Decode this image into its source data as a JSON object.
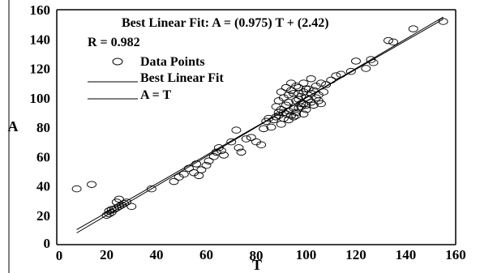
{
  "chart_data": {
    "type": "scatter",
    "title": "Best Linear Fit:  A = (0.975) T + (2.42)",
    "annotation": "R = 0.982",
    "xlabel": "T",
    "ylabel": "A",
    "xlim": [
      0,
      160
    ],
    "ylim": [
      0,
      160
    ],
    "xticks": [
      "0",
      "20",
      "40",
      "60",
      "80",
      "100",
      "120",
      "140",
      "160"
    ],
    "yticks": [
      "0",
      "20",
      "40",
      "60",
      "80",
      "100",
      "120",
      "140",
      "160"
    ],
    "grid": false,
    "legend_position": "top-left",
    "legend": [
      {
        "label": "Data Points",
        "marker": "circle"
      },
      {
        "label": "Best Linear Fit",
        "marker": "line"
      },
      {
        "label": "A = T",
        "marker": "line"
      }
    ],
    "fit_line": {
      "slope": 0.975,
      "intercept": 2.42
    },
    "identity_line": {
      "slope": 1,
      "intercept": 0
    },
    "line_x_range": [
      8,
      155
    ],
    "points": [
      [
        8,
        38
      ],
      [
        14,
        41
      ],
      [
        20,
        20
      ],
      [
        21,
        21
      ],
      [
        22,
        22
      ],
      [
        21,
        23
      ],
      [
        23,
        24
      ],
      [
        24,
        25
      ],
      [
        25,
        26
      ],
      [
        26,
        27
      ],
      [
        27,
        28
      ],
      [
        25,
        31
      ],
      [
        28,
        29
      ],
      [
        30,
        26
      ],
      [
        24,
        29
      ],
      [
        22,
        24
      ],
      [
        38,
        38
      ],
      [
        47,
        43
      ],
      [
        49,
        46
      ],
      [
        51,
        48
      ],
      [
        53,
        52
      ],
      [
        55,
        49
      ],
      [
        56,
        55
      ],
      [
        57,
        47
      ],
      [
        58,
        51
      ],
      [
        60,
        54
      ],
      [
        61,
        57
      ],
      [
        63,
        60
      ],
      [
        64,
        63
      ],
      [
        65,
        66
      ],
      [
        66,
        64
      ],
      [
        67,
        61
      ],
      [
        70,
        70
      ],
      [
        72,
        78
      ],
      [
        73,
        66
      ],
      [
        74,
        63
      ],
      [
        76,
        72
      ],
      [
        78,
        73
      ],
      [
        80,
        70
      ],
      [
        82,
        68
      ],
      [
        83,
        79
      ],
      [
        84,
        84
      ],
      [
        85,
        86
      ],
      [
        86,
        80
      ],
      [
        87,
        85
      ],
      [
        88,
        87
      ],
      [
        89,
        88
      ],
      [
        90,
        92
      ],
      [
        91,
        90
      ],
      [
        92,
        95
      ],
      [
        93,
        97
      ],
      [
        93,
        102
      ],
      [
        94,
        105
      ],
      [
        95,
        103
      ],
      [
        95,
        93
      ],
      [
        96,
        98
      ],
      [
        96,
        88
      ],
      [
        97,
        99
      ],
      [
        97,
        107
      ],
      [
        98,
        101
      ],
      [
        98,
        94
      ],
      [
        99,
        96
      ],
      [
        99,
        104
      ],
      [
        100,
        100
      ],
      [
        100,
        92
      ],
      [
        101,
        99
      ],
      [
        101,
        106
      ],
      [
        102,
        103
      ],
      [
        102,
        97
      ],
      [
        103,
        95
      ],
      [
        103,
        105
      ],
      [
        104,
        100
      ],
      [
        104,
        108
      ],
      [
        105,
        102
      ],
      [
        105,
        98
      ],
      [
        106,
        96
      ],
      [
        106,
        110
      ],
      [
        107,
        104
      ],
      [
        108,
        109
      ],
      [
        110,
        112
      ],
      [
        112,
        115
      ],
      [
        114,
        116
      ],
      [
        90,
        82
      ],
      [
        91,
        86
      ],
      [
        92,
        89
      ],
      [
        93,
        91
      ],
      [
        94,
        88
      ],
      [
        95,
        87
      ],
      [
        96,
        90
      ],
      [
        97,
        93
      ],
      [
        98,
        96
      ],
      [
        89,
        98
      ],
      [
        90,
        104
      ],
      [
        91,
        100
      ],
      [
        92,
        107
      ],
      [
        94,
        110
      ],
      [
        96,
        108
      ],
      [
        97,
        103
      ],
      [
        99,
        110
      ],
      [
        100,
        106
      ],
      [
        102,
        113
      ],
      [
        88,
        94
      ],
      [
        89,
        90
      ],
      [
        93,
        85
      ],
      [
        99,
        89
      ],
      [
        100,
        95
      ],
      [
        118,
        118
      ],
      [
        120,
        125
      ],
      [
        124,
        120
      ],
      [
        126,
        126
      ],
      [
        127,
        124
      ],
      [
        133,
        139
      ],
      [
        135,
        138
      ],
      [
        143,
        147
      ],
      [
        155,
        152
      ]
    ]
  }
}
